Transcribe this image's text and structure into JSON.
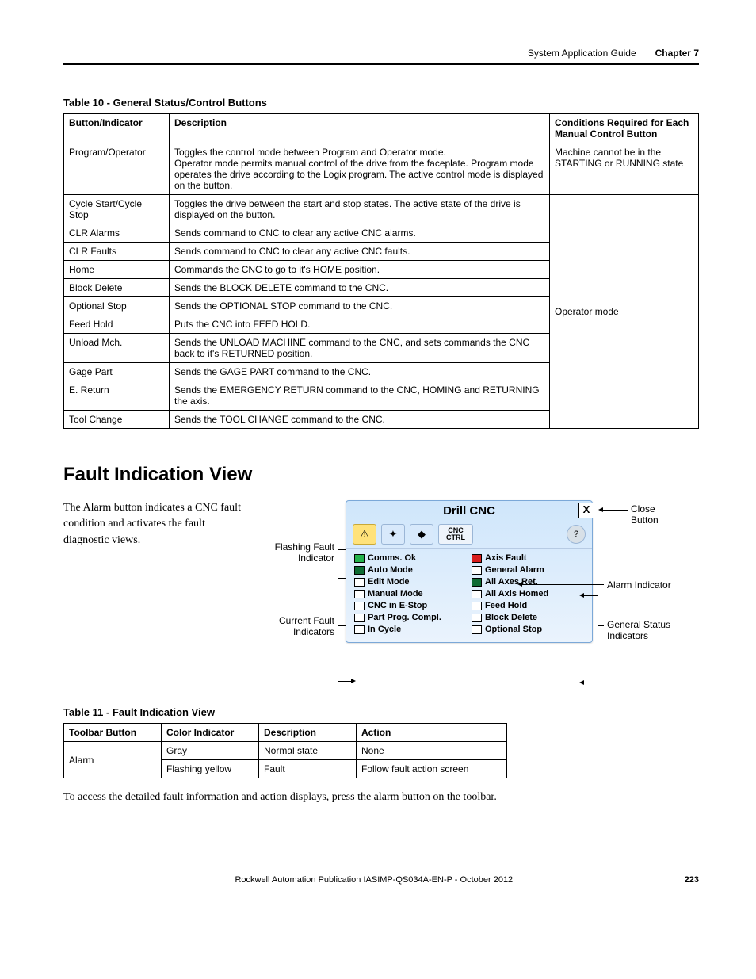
{
  "header": {
    "section": "System Application Guide",
    "chapter": "Chapter 7"
  },
  "table10": {
    "caption": "Table 10 - General Status/Control Buttons",
    "columns": [
      "Button/Indicator",
      "Description",
      "Conditions Required for Each Manual Control Button"
    ],
    "rows": [
      {
        "c1": "Program/Operator",
        "c2": "Toggles the control mode between Program and Operator mode.\nOperator mode permits manual control of the drive from the faceplate. Program mode operates the drive according to the Logix program. The active control mode is displayed on the button.",
        "c3": "Machine cannot be in the STARTING or RUNNING state"
      },
      {
        "c1": "Cycle Start/Cycle Stop",
        "c2": "Toggles the drive between the start and stop states. The active state of the drive is displayed on the button.",
        "c3_span_start": true,
        "c3": "Operator mode"
      },
      {
        "c1": "CLR Alarms",
        "c2": "Sends command to CNC to clear any active CNC alarms."
      },
      {
        "c1": "CLR Faults",
        "c2": "Sends command to CNC to clear any active CNC faults."
      },
      {
        "c1": "Home",
        "c2": "Commands the CNC to go to it's HOME position."
      },
      {
        "c1": "Block Delete",
        "c2": "Sends the BLOCK DELETE command to the CNC."
      },
      {
        "c1": "Optional Stop",
        "c2": "Sends the OPTIONAL STOP command to the CNC."
      },
      {
        "c1": "Feed Hold",
        "c2": "Puts the CNC into FEED HOLD."
      },
      {
        "c1": "Unload Mch.",
        "c2": "Sends the UNLOAD MACHINE command to the CNC, and sets commands the CNC back to it's RETURNED position."
      },
      {
        "c1": "Gage Part",
        "c2": "Sends the GAGE PART command to the CNC."
      },
      {
        "c1": "E. Return",
        "c2": "Sends the EMERGENCY RETURN command to the CNC, HOMING and RETURNING the axis."
      },
      {
        "c1": "Tool Change",
        "c2": "Sends the TOOL CHANGE command to the CNC."
      }
    ]
  },
  "sectionTitle": "Fault Indication View",
  "bodyText": "The Alarm button indicates a CNC fault condition and activates the fault diagnostic views.",
  "panel": {
    "title": "Drill CNC",
    "cncCtrl": "CNC\nCTRL",
    "leftCol": [
      {
        "lbl": "Comms. Ok",
        "color": "green"
      },
      {
        "lbl": "Auto Mode",
        "color": "dgreen"
      },
      {
        "lbl": "Edit Mode",
        "color": "white"
      },
      {
        "lbl": "Manual Mode",
        "color": "white"
      },
      {
        "lbl": "CNC in E-Stop",
        "color": "white"
      },
      {
        "lbl": "Part Prog. Compl.",
        "color": "white"
      },
      {
        "lbl": "In Cycle",
        "color": "white"
      }
    ],
    "rightCol": [
      {
        "lbl": "Axis Fault",
        "color": "red"
      },
      {
        "lbl": "General Alarm",
        "color": "white"
      },
      {
        "lbl": "All Axes Ret.",
        "color": "dgreen"
      },
      {
        "lbl": "All Axis Homed",
        "color": "white"
      },
      {
        "lbl": "Feed Hold",
        "color": "white"
      },
      {
        "lbl": "Block Delete",
        "color": "white"
      },
      {
        "lbl": "Optional Stop",
        "color": "white"
      }
    ]
  },
  "callouts": {
    "closeBtn": "Close\nButton",
    "flashing": "Flashing Fault\nIndicator",
    "current": "Current Fault\nIndicators",
    "alarmInd": "Alarm Indicator",
    "genStatus": "General Status\nIndicators"
  },
  "table11": {
    "caption": "Table 11 - Fault Indication View",
    "columns": [
      "Toolbar Button",
      "Color Indicator",
      "Description",
      "Action"
    ],
    "rows": [
      {
        "c1": "Alarm",
        "c1_rowspan": 2,
        "c2": "Gray",
        "c3": "Normal state",
        "c4": "None"
      },
      {
        "c2": "Flashing yellow",
        "c3": "Fault",
        "c4": "Follow fault action screen"
      }
    ]
  },
  "footNote": "To access the detailed fault information and action displays, press the alarm button on the toolbar.",
  "footer": {
    "pub": "Rockwell Automation Publication IASIMP-QS034A-EN-P - October 2012",
    "page": "223"
  }
}
